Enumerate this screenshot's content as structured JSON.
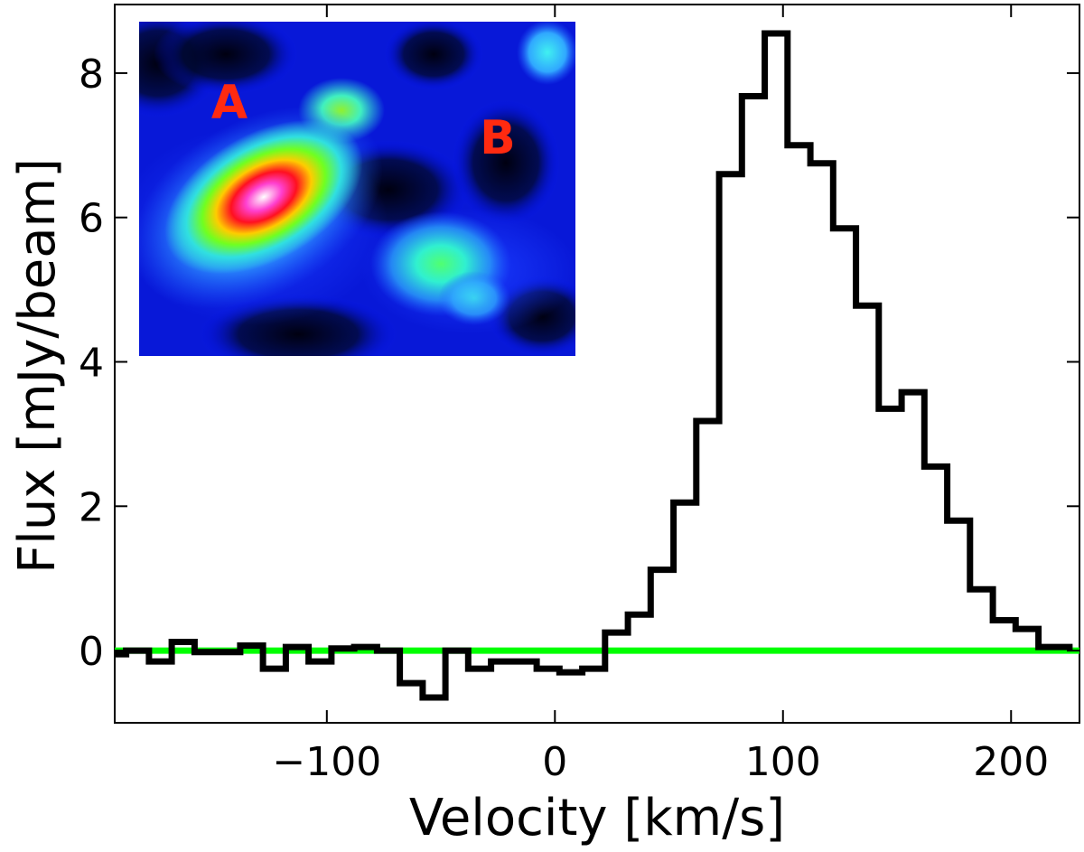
{
  "chart_data": {
    "type": "line",
    "step": true,
    "xlabel": "Velocity [km/s]",
    "ylabel": "Flux [mJy/beam]",
    "xlim": [
      -193,
      230
    ],
    "ylim": [
      -1.0,
      8.95
    ],
    "x_ticks": [
      -100,
      0,
      100,
      200
    ],
    "x_tick_labels": [
      "−100",
      "0",
      "100",
      "200"
    ],
    "y_ticks": [
      0,
      2,
      4,
      6,
      8
    ],
    "y_tick_labels": [
      "0",
      "2",
      "4",
      "6",
      "8"
    ],
    "grid": false,
    "baseline": {
      "y": 0,
      "color": "#00ff00"
    },
    "series": [
      {
        "color": "#000000",
        "x": [
          -193,
          -183,
          -173,
          -163,
          -153,
          -143,
          -133,
          -123,
          -113,
          -103,
          -93,
          -83,
          -73,
          -63,
          -53,
          -43,
          -33,
          -23,
          -13,
          -3,
          7,
          17,
          27,
          37,
          47,
          57,
          67,
          77,
          87,
          97,
          107,
          117,
          127,
          137,
          147,
          157,
          167,
          177,
          187,
          197,
          207,
          217,
          227
        ],
        "y": [
          -0.05,
          0.0,
          -0.15,
          0.12,
          -0.02,
          -0.02,
          0.07,
          -0.25,
          0.05,
          -0.15,
          0.03,
          0.05,
          0.0,
          -0.45,
          -0.65,
          0.0,
          -0.25,
          -0.15,
          -0.15,
          -0.25,
          -0.3,
          -0.25,
          0.25,
          0.5,
          1.12,
          2.05,
          3.18,
          6.6,
          7.68,
          8.55,
          7.0,
          6.75,
          5.85,
          4.78,
          3.35,
          3.58,
          2.55,
          1.8,
          0.85,
          0.42,
          0.3,
          0.05,
          0.05
        ]
      }
    ]
  },
  "inset": {
    "labels": [
      {
        "text": "A"
      },
      {
        "text": "B"
      }
    ]
  }
}
